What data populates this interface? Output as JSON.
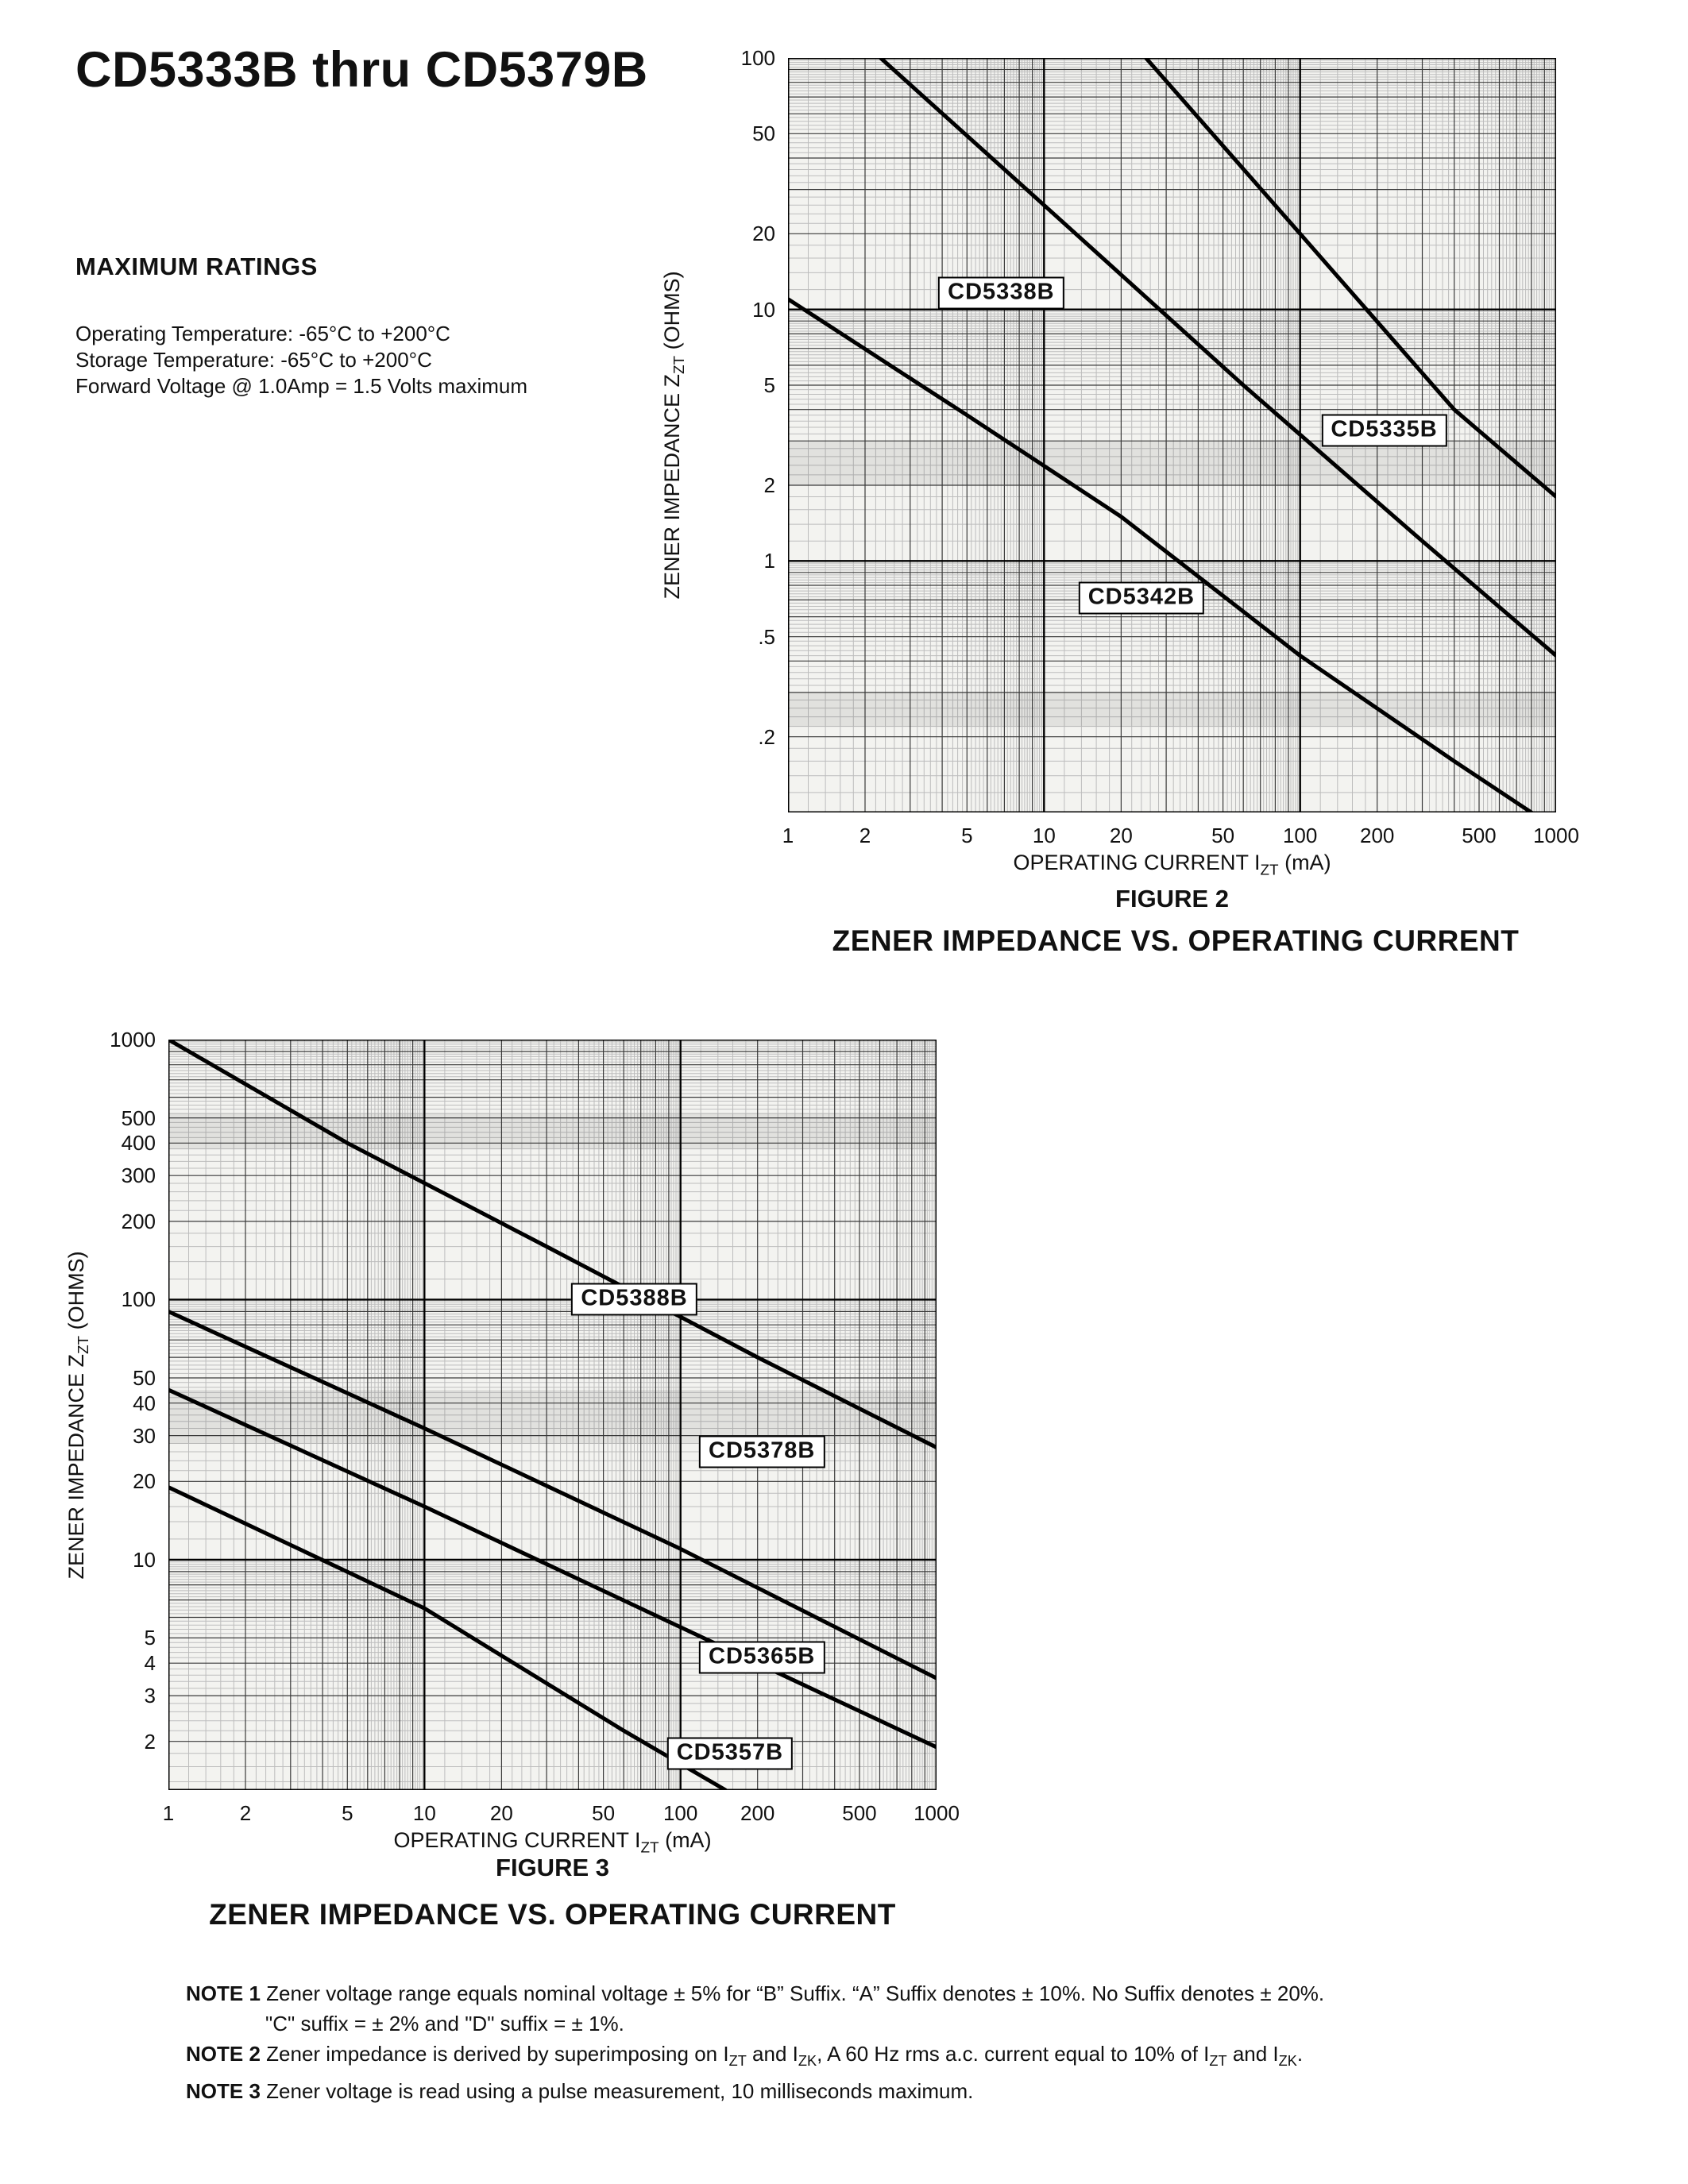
{
  "page_title": "CD5333B thru CD5379B",
  "max_ratings": {
    "heading": "MAXIMUM RATINGS",
    "lines": [
      "Operating Temperature: -65°C to +200°C",
      "Storage Temperature: -65°C to +200°C",
      "Forward Voltage @ 1.0Amp = 1.5 Volts maximum"
    ]
  },
  "chart_data": [
    {
      "type": "line",
      "figure_label": "FIGURE 2",
      "title": "ZENER IMPEDANCE VS. OPERATING CURRENT",
      "xlabel": "OPERATING CURRENT IZT (mA)",
      "ylabel": "ZENER IMPEDANCE ZZT (OHMS)",
      "xlabel_parts": [
        {
          "t": "OPERATING CURRENT I"
        },
        {
          "t": "ZT",
          "sub": true
        },
        {
          "t": " (mA)"
        }
      ],
      "ylabel_parts": [
        {
          "t": "ZENER IMPEDANCE Z"
        },
        {
          "t": "ZT",
          "sub": true
        },
        {
          "t": " (OHMS)"
        }
      ],
      "log_x": true,
      "log_y": true,
      "xlim": [
        1,
        1000
      ],
      "ylim": [
        0.1,
        100
      ],
      "x_ticks": [
        {
          "v": 1,
          "t": "1"
        },
        {
          "v": 2,
          "t": "2"
        },
        {
          "v": 5,
          "t": "5"
        },
        {
          "v": 10,
          "t": "10"
        },
        {
          "v": 20,
          "t": "20"
        },
        {
          "v": 50,
          "t": "50"
        },
        {
          "v": 100,
          "t": "100"
        },
        {
          "v": 200,
          "t": "200"
        },
        {
          "v": 500,
          "t": "500"
        },
        {
          "v": 1000,
          "t": "1000"
        }
      ],
      "y_ticks": [
        {
          "v": 100,
          "t": "100"
        },
        {
          "v": 50,
          "t": "50"
        },
        {
          "v": 20,
          "t": "20"
        },
        {
          "v": 10,
          "t": "10"
        },
        {
          "v": 5,
          "t": "5"
        },
        {
          "v": 2,
          "t": "2"
        },
        {
          "v": 1,
          "t": "1"
        },
        {
          "v": 0.5,
          "t": ".5"
        },
        {
          "v": 0.2,
          "t": ".2"
        }
      ],
      "series": [
        {
          "name": "CD5338B",
          "points": [
            [
              2.3,
              100
            ],
            [
              10,
              26
            ],
            [
              60,
              5
            ],
            [
              300,
              1.2
            ],
            [
              1000,
              0.42
            ]
          ],
          "label_at": [
            6.8,
            11.6
          ]
        },
        {
          "name": "CD5335B",
          "points": [
            [
              25,
              100
            ],
            [
              100,
              20
            ],
            [
              400,
              4
            ],
            [
              1000,
              1.8
            ]
          ],
          "label_at": [
            213,
            3.3
          ]
        },
        {
          "name": "CD5342B",
          "points": [
            [
              1,
              11
            ],
            [
              5,
              3.8
            ],
            [
              20,
              1.5
            ],
            [
              100,
              0.42
            ],
            [
              400,
              0.16
            ],
            [
              800,
              0.1
            ]
          ],
          "label_at": [
            24,
            0.71
          ]
        }
      ]
    },
    {
      "type": "line",
      "figure_label": "FIGURE 3",
      "title": "ZENER IMPEDANCE VS. OPERATING CURRENT",
      "xlabel": "OPERATING CURRENT IZT (mA)",
      "ylabel": "ZENER IMPEDANCE ZZT (OHMS)",
      "xlabel_parts": [
        {
          "t": "OPERATING CURRENT I"
        },
        {
          "t": "ZT",
          "sub": true
        },
        {
          "t": " (mA)"
        }
      ],
      "ylabel_parts": [
        {
          "t": "ZENER IMPEDANCE Z"
        },
        {
          "t": "ZT",
          "sub": true
        },
        {
          "t": " (OHMS)"
        }
      ],
      "log_x": true,
      "log_y": true,
      "xlim": [
        1,
        1000
      ],
      "ylim": [
        1.3,
        1000
      ],
      "x_ticks": [
        {
          "v": 1,
          "t": "1"
        },
        {
          "v": 2,
          "t": "2"
        },
        {
          "v": 5,
          "t": "5"
        },
        {
          "v": 10,
          "t": "10"
        },
        {
          "v": 20,
          "t": "20"
        },
        {
          "v": 50,
          "t": "50"
        },
        {
          "v": 100,
          "t": "100"
        },
        {
          "v": 200,
          "t": "200"
        },
        {
          "v": 500,
          "t": "500"
        },
        {
          "v": 1000,
          "t": "1000"
        }
      ],
      "y_ticks": [
        {
          "v": 1000,
          "t": "1000"
        },
        {
          "v": 500,
          "t": "500"
        },
        {
          "v": 400,
          "t": "400"
        },
        {
          "v": 300,
          "t": "300"
        },
        {
          "v": 200,
          "t": "200"
        },
        {
          "v": 100,
          "t": "100"
        },
        {
          "v": 50,
          "t": "50"
        },
        {
          "v": 40,
          "t": "40"
        },
        {
          "v": 30,
          "t": "30"
        },
        {
          "v": 20,
          "t": "20"
        },
        {
          "v": 10,
          "t": "10"
        },
        {
          "v": 5,
          "t": "5"
        },
        {
          "v": 4,
          "t": "4"
        },
        {
          "v": 3,
          "t": "3"
        },
        {
          "v": 2,
          "t": "2"
        }
      ],
      "series": [
        {
          "name": "CD5388B",
          "points": [
            [
              1,
              1000
            ],
            [
              5,
              400
            ],
            [
              30,
              160
            ],
            [
              200,
              60
            ],
            [
              1000,
              27
            ]
          ],
          "label_at": [
            66,
            100
          ]
        },
        {
          "name": "CD5378B",
          "points": [
            [
              1,
              90
            ],
            [
              10,
              32
            ],
            [
              100,
              11
            ],
            [
              1000,
              3.5
            ]
          ],
          "label_at": [
            208,
            26
          ]
        },
        {
          "name": "CD5365B",
          "points": [
            [
              1,
              45
            ],
            [
              10,
              16
            ],
            [
              100,
              5.5
            ],
            [
              1000,
              1.9
            ]
          ],
          "label_at": [
            208,
            4.2
          ]
        },
        {
          "name": "CD5357B",
          "points": [
            [
              1,
              19
            ],
            [
              10,
              6.5
            ],
            [
              60,
              2.2
            ],
            [
              150,
              1.3
            ]
          ],
          "label_at": [
            156,
            1.8
          ]
        }
      ]
    }
  ],
  "notes": [
    {
      "segments": [
        {
          "t": "NOTE 1",
          "b": true
        },
        {
          "t": " Zener voltage range equals nominal voltage ± 5% for “B” Suffix. “A” Suffix denotes ± 10%. No Suffix denotes ± 20%."
        }
      ]
    },
    {
      "segments": [
        {
          "t": "\"C\" suffix = ± 2% and \"D\" suffix = ± 1%."
        }
      ]
    },
    {
      "segments": [
        {
          "t": "NOTE 2",
          "b": true
        },
        {
          "t": " Zener impedance is derived by superimposing on I"
        },
        {
          "t": "ZT",
          "sub": true
        },
        {
          "t": " and I"
        },
        {
          "t": "ZK",
          "sub": true
        },
        {
          "t": ", A 60 Hz rms a.c. current equal to 10% of I"
        },
        {
          "t": "ZT",
          "sub": true
        },
        {
          "t": " and I"
        },
        {
          "t": "ZK",
          "sub": true
        },
        {
          "t": "."
        }
      ]
    },
    {
      "segments": [
        {
          "t": "NOTE 3",
          "b": true
        },
        {
          "t": " Zener voltage is read using a pulse measurement, 10 milliseconds maximum."
        }
      ]
    }
  ]
}
